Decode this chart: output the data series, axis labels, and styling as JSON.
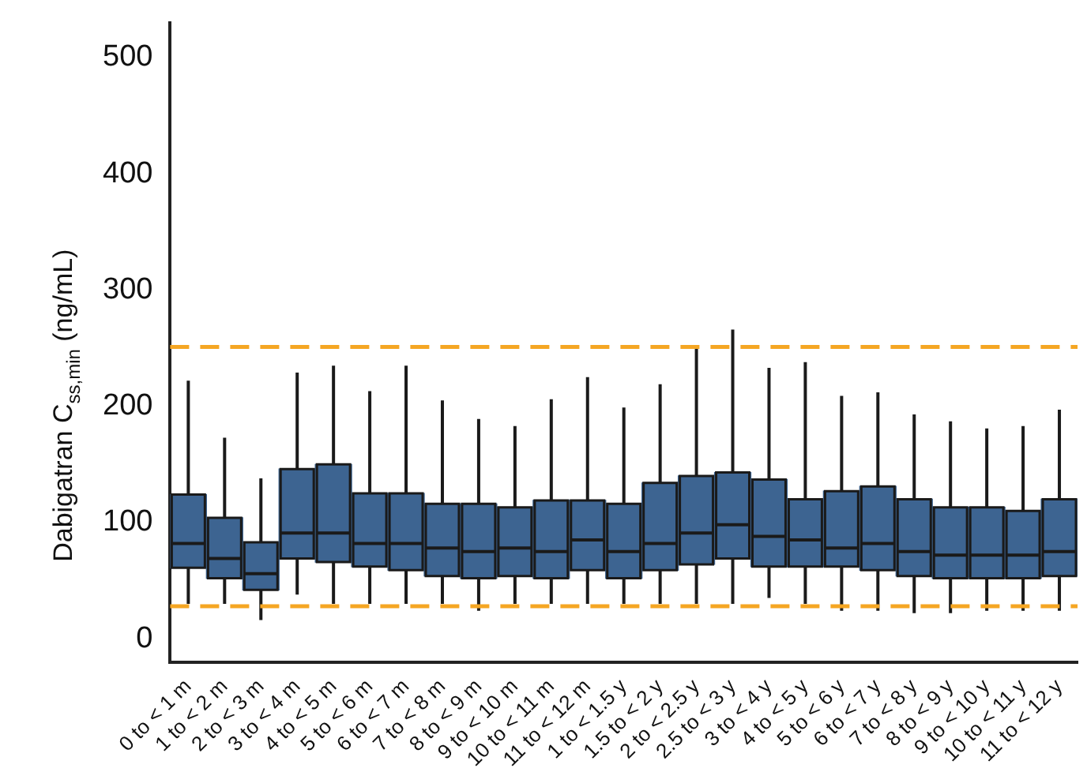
{
  "chart_data": {
    "type": "box",
    "ylabel": "Dabigatran C$_{ss,min}$ (ng/mL)",
    "categories": [
      "0 to < 1 m",
      "1 to < 2 m",
      "2 to < 3 m",
      "3 to < 4 m",
      "4 to < 5 m",
      "5 to < 6 m",
      "6 to < 7 m",
      "7 to < 8 m",
      "8 to < 9 m",
      "9 to < 10 m",
      "10 to < 11 m",
      "11 to < 12 m",
      "1 to < 1.5 y",
      "1.5 to < 2 y",
      "2 to < 2.5 y",
      "2.5 to < 3 y",
      "3 to < 4 y",
      "4 to < 5 y",
      "5 to < 6 y",
      "6 to < 7 y",
      "7 to < 8 y",
      "8 to < 9 y",
      "9 to < 10 y",
      "10 to < 11 y",
      "11 to < 12 y"
    ],
    "color": "#3d6491",
    "boxes": [
      {
        "low": 30,
        "q1": 61,
        "median": 82,
        "q3": 124,
        "high": 222
      },
      {
        "low": 30,
        "q1": 52,
        "median": 69,
        "q3": 104,
        "high": 173
      },
      {
        "low": 16,
        "q1": 42,
        "median": 56,
        "q3": 83,
        "high": 138
      },
      {
        "low": 38,
        "q1": 69,
        "median": 91,
        "q3": 146,
        "high": 229
      },
      {
        "low": 30,
        "q1": 66,
        "median": 91,
        "q3": 150,
        "high": 235
      },
      {
        "low": 30,
        "q1": 62,
        "median": 82,
        "q3": 125,
        "high": 213
      },
      {
        "low": 30,
        "q1": 59,
        "median": 82,
        "q3": 125,
        "high": 235
      },
      {
        "low": 30,
        "q1": 54,
        "median": 78,
        "q3": 116,
        "high": 205
      },
      {
        "low": 24,
        "q1": 52,
        "median": 75,
        "q3": 116,
        "high": 189
      },
      {
        "low": 30,
        "q1": 54,
        "median": 78,
        "q3": 113,
        "high": 183
      },
      {
        "low": 30,
        "q1": 52,
        "median": 75,
        "q3": 119,
        "high": 206
      },
      {
        "low": 30,
        "q1": 59,
        "median": 85,
        "q3": 119,
        "high": 225
      },
      {
        "low": 30,
        "q1": 52,
        "median": 75,
        "q3": 116,
        "high": 199
      },
      {
        "low": 30,
        "q1": 59,
        "median": 82,
        "q3": 134,
        "high": 219
      },
      {
        "low": 30,
        "q1": 64,
        "median": 91,
        "q3": 140,
        "high": 250
      },
      {
        "low": 30,
        "q1": 69,
        "median": 98,
        "q3": 143,
        "high": 266
      },
      {
        "low": 35,
        "q1": 62,
        "median": 88,
        "q3": 137,
        "high": 233
      },
      {
        "low": 30,
        "q1": 62,
        "median": 85,
        "q3": 120,
        "high": 238
      },
      {
        "low": 24,
        "q1": 62,
        "median": 78,
        "q3": 127,
        "high": 209
      },
      {
        "low": 24,
        "q1": 59,
        "median": 82,
        "q3": 131,
        "high": 212
      },
      {
        "low": 22,
        "q1": 54,
        "median": 75,
        "q3": 120,
        "high": 193
      },
      {
        "low": 22,
        "q1": 52,
        "median": 72,
        "q3": 113,
        "high": 187
      },
      {
        "low": 24,
        "q1": 52,
        "median": 72,
        "q3": 113,
        "high": 181
      },
      {
        "low": 24,
        "q1": 52,
        "median": 72,
        "q3": 110,
        "high": 183
      },
      {
        "low": 24,
        "q1": 54,
        "median": 75,
        "q3": 120,
        "high": 197
      }
    ],
    "ylim": [
      -20,
      530
    ],
    "yticks": [
      0,
      100,
      200,
      300,
      400,
      500
    ],
    "ref_lines": [
      {
        "axis": "y",
        "value": 251,
        "color": "#f5a623",
        "line_style": "dashed"
      },
      {
        "axis": "y",
        "value": 28,
        "color": "#f5a623",
        "line_style": "dashed"
      }
    ],
    "grid": false,
    "legend": false
  }
}
